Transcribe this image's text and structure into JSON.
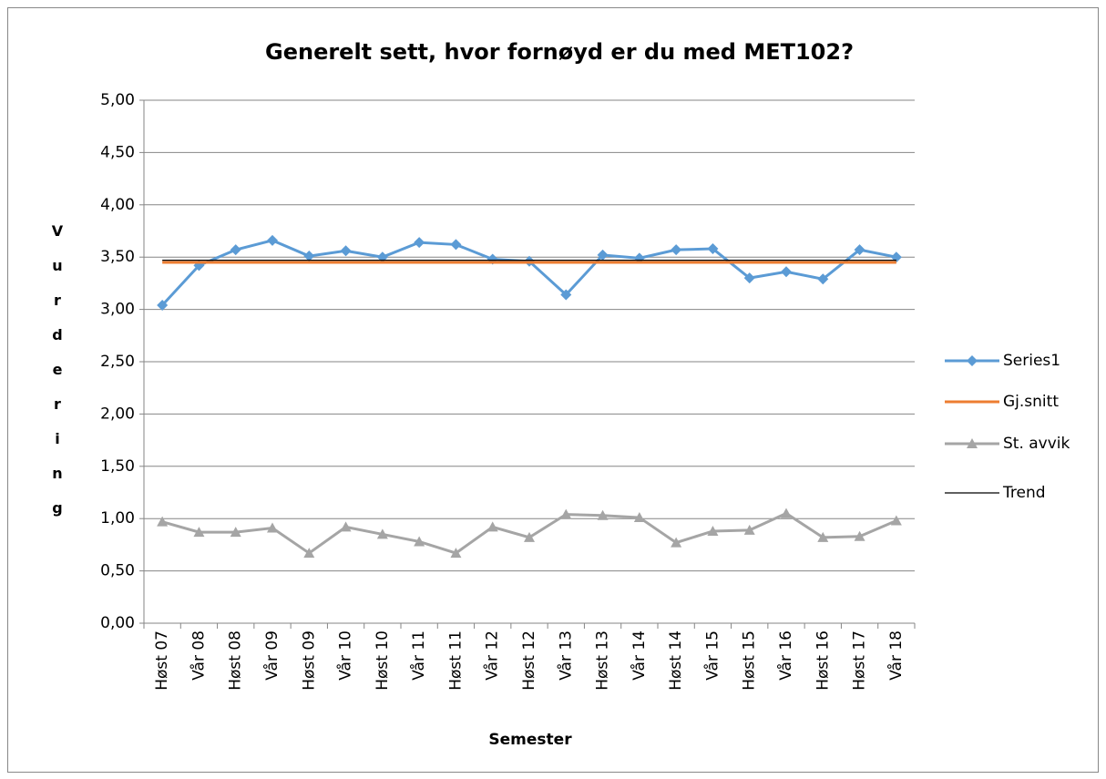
{
  "chart_data": {
    "type": "line",
    "title": "Generelt sett, hvor fornøyd er du med MET102?",
    "x_label": "Semester",
    "y_label": "Vurdering",
    "categories": [
      "Høst 07",
      "Vår 08",
      "Høst 08",
      "Vår 09",
      "Høst 09",
      "Vår 10",
      "Høst 10",
      "Vår 11",
      "Høst 11",
      "Vår 12",
      "Høst 12",
      "Vår 13",
      "Høst 13",
      "Vår 14",
      "Høst 14",
      "Vår 15",
      "Høst 15",
      "Vår 16",
      "Høst 16",
      "Høst 17",
      "Vår 18"
    ],
    "series": [
      {
        "name": "Series1",
        "color": "#5b9bd5",
        "marker": "diamond",
        "width": 3,
        "values": [
          3.04,
          3.42,
          3.57,
          3.66,
          3.51,
          3.56,
          3.5,
          3.64,
          3.62,
          3.48,
          3.46,
          3.14,
          3.52,
          3.49,
          3.57,
          3.58,
          3.3,
          3.36,
          3.29,
          3.57,
          3.5
        ]
      },
      {
        "name": "Gj.snitt",
        "color": "#ed7d31",
        "marker": null,
        "width": 3,
        "values": [
          3.45,
          3.45,
          3.45,
          3.45,
          3.45,
          3.45,
          3.45,
          3.45,
          3.45,
          3.45,
          3.45,
          3.45,
          3.45,
          3.45,
          3.45,
          3.45,
          3.45,
          3.45,
          3.45,
          3.45,
          3.45
        ]
      },
      {
        "name": "St. avvik",
        "color": "#a5a5a5",
        "marker": "triangle",
        "width": 3,
        "values": [
          0.97,
          0.87,
          0.87,
          0.91,
          0.67,
          0.92,
          0.85,
          0.78,
          0.67,
          0.92,
          0.82,
          1.04,
          1.03,
          1.01,
          0.77,
          0.88,
          0.89,
          1.05,
          0.82,
          0.83,
          0.98
        ]
      },
      {
        "name": "Trend",
        "color": "#000000",
        "marker": null,
        "width": 1.2,
        "values": [
          3.47,
          3.47,
          3.47,
          3.47,
          3.47,
          3.47,
          3.47,
          3.47,
          3.47,
          3.47,
          3.47,
          3.47,
          3.47,
          3.47,
          3.47,
          3.47,
          3.47,
          3.47,
          3.47,
          3.47,
          3.47
        ]
      }
    ],
    "ylim": [
      0,
      5
    ],
    "yticks": [
      {
        "value": 0,
        "label": "0,00"
      },
      {
        "value": 0.5,
        "label": "0,50"
      },
      {
        "value": 1,
        "label": "1,00"
      },
      {
        "value": 1.5,
        "label": "1,50"
      },
      {
        "value": 2,
        "label": "2,00"
      },
      {
        "value": 2.5,
        "label": "2,50"
      },
      {
        "value": 3,
        "label": "3,00"
      },
      {
        "value": 3.5,
        "label": "3,50"
      },
      {
        "value": 4,
        "label": "4,00"
      },
      {
        "value": 4.5,
        "label": "4,50"
      },
      {
        "value": 5,
        "label": "5,00"
      }
    ],
    "grid": true,
    "legend": "right"
  }
}
